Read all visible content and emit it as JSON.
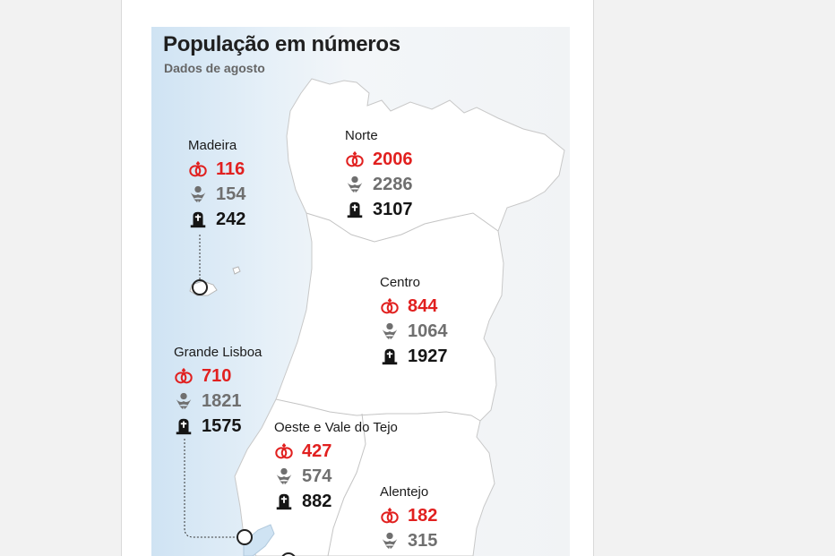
{
  "title": "População em números",
  "subtitle": "Dados de agosto",
  "colors": {
    "marriages": "#e1201f",
    "births": "#6f6f6f",
    "deaths": "#151515",
    "land": "#ffffff",
    "sea": "#cfe3f3"
  },
  "icons": {
    "marriages": "rings-icon",
    "births": "baby-icon",
    "deaths": "tombstone-icon"
  },
  "regions": {
    "madeira": {
      "name": "Madeira",
      "marriages": "116",
      "births": "154",
      "deaths": "242"
    },
    "norte": {
      "name": "Norte",
      "marriages": "2006",
      "births": "2286",
      "deaths": "3107"
    },
    "centro": {
      "name": "Centro",
      "marriages": "844",
      "births": "1064",
      "deaths": "1927"
    },
    "grande_lisboa": {
      "name": "Grande Lisboa",
      "marriages": "710",
      "births": "1821",
      "deaths": "1575"
    },
    "oeste_vale_tejo": {
      "name": "Oeste e Vale do Tejo",
      "marriages": "427",
      "births": "574",
      "deaths": "882"
    },
    "alentejo": {
      "name": "Alentejo",
      "marriages": "182",
      "births": "315",
      "deaths": ""
    }
  }
}
